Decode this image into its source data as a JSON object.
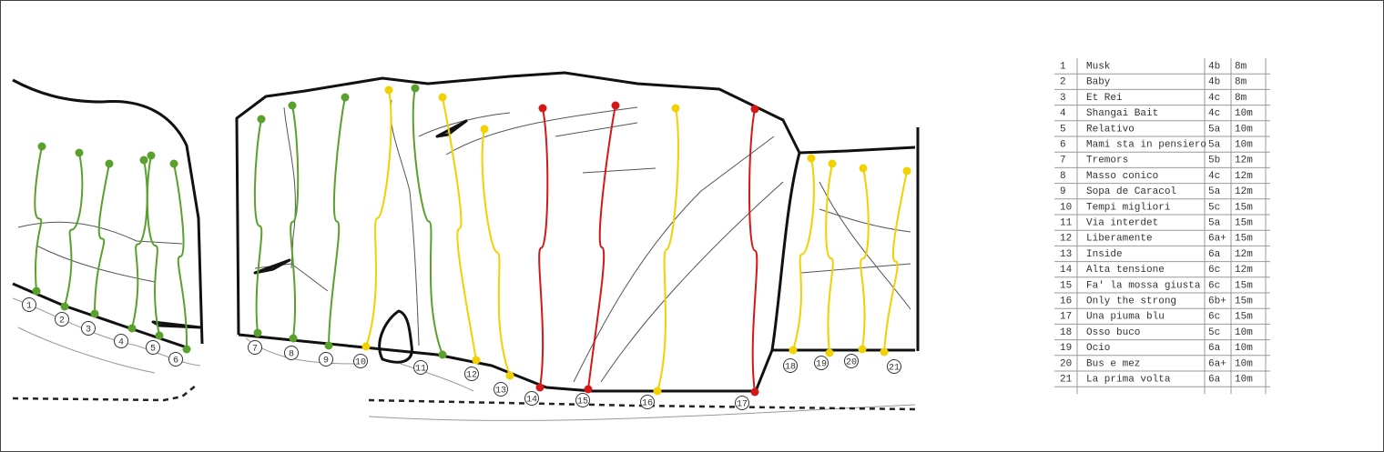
{
  "routes": [
    {
      "number": "1",
      "name": "Musk",
      "grade": "4b",
      "length": "8m",
      "color": "#5aa02c"
    },
    {
      "number": "2",
      "name": "Baby",
      "grade": "4b",
      "length": "8m",
      "color": "#5aa02c"
    },
    {
      "number": "3",
      "name": "Et Rei",
      "grade": "4c",
      "length": "8m",
      "color": "#5aa02c"
    },
    {
      "number": "4",
      "name": "Shangai Bait",
      "grade": "4c",
      "length": "10m",
      "color": "#5aa02c"
    },
    {
      "number": "5",
      "name": "Relativo",
      "grade": "5a",
      "length": "10m",
      "color": "#5aa02c"
    },
    {
      "number": "6",
      "name": "Mami sta in pensiero",
      "grade": "5a",
      "length": "10m",
      "color": "#5aa02c"
    },
    {
      "number": "7",
      "name": "Tremors",
      "grade": "5b",
      "length": "12m",
      "color": "#5aa02c"
    },
    {
      "number": "8",
      "name": "Masso conico",
      "grade": "4c",
      "length": "12m",
      "color": "#5aa02c"
    },
    {
      "number": "9",
      "name": "Sopa de Caracol",
      "grade": "5a",
      "length": "12m",
      "color": "#5aa02c"
    },
    {
      "number": "10",
      "name": "Tempi migliori",
      "grade": "5c",
      "length": "15m",
      "color": "#f2d100"
    },
    {
      "number": "11",
      "name": "Via interdet",
      "grade": "5a",
      "length": "15m",
      "color": "#5aa02c"
    },
    {
      "number": "12",
      "name": "Liberamente",
      "grade": "6a+",
      "length": "15m",
      "color": "#f2d100"
    },
    {
      "number": "13",
      "name": "Inside",
      "grade": "6a",
      "length": "12m",
      "color": "#f2d100"
    },
    {
      "number": "14",
      "name": "Alta tensione",
      "grade": "6c",
      "length": "12m",
      "color": "#d41818"
    },
    {
      "number": "15",
      "name": "Fa' la mossa giusta",
      "grade": "6c",
      "length": "15m",
      "color": "#d41818"
    },
    {
      "number": "16",
      "name": "Only the strong",
      "grade": "6b+",
      "length": "15m",
      "color": "#f2d100"
    },
    {
      "number": "17",
      "name": "Una piuma blu",
      "grade": "6c",
      "length": "15m",
      "color": "#d41818"
    },
    {
      "number": "18",
      "name": "Osso buco",
      "grade": "5c",
      "length": "10m",
      "color": "#f2d100"
    },
    {
      "number": "19",
      "name": "Ocio",
      "grade": "6a",
      "length": "10m",
      "color": "#f2d100"
    },
    {
      "number": "20",
      "name": "Bus e mez",
      "grade": "6a+",
      "length": "10m",
      "color": "#f2d100"
    },
    {
      "number": "21",
      "name": "La prima volta",
      "grade": "6a",
      "length": "10m",
      "color": "#f2d100"
    }
  ]
}
